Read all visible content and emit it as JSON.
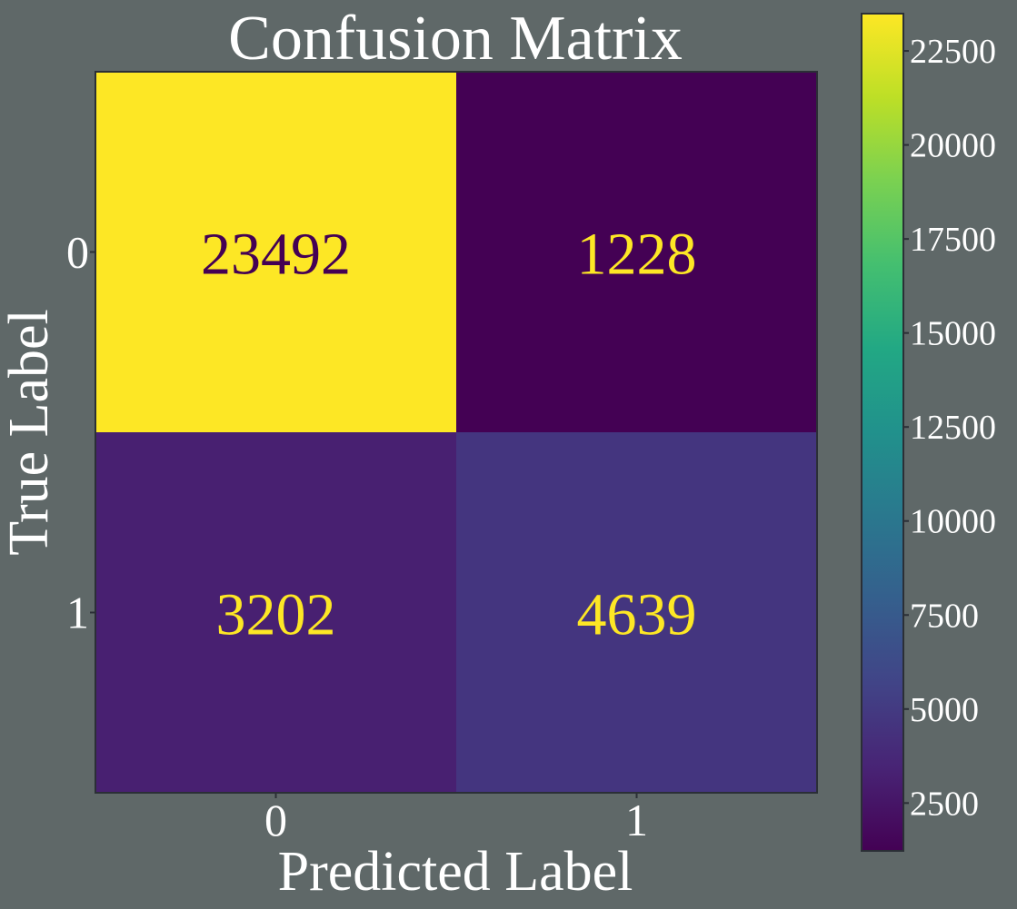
{
  "chart_data": {
    "type": "heatmap",
    "title": "Confusion Matrix",
    "xlabel": "Predicted Label",
    "ylabel": "True Label",
    "x_ticks": [
      "0",
      "1"
    ],
    "y_ticks": [
      "0",
      "1"
    ],
    "matrix": [
      [
        23492,
        1228
      ],
      [
        3202,
        4639
      ]
    ],
    "cell_labels": [
      [
        "23492",
        "1228"
      ],
      [
        "3202",
        "4639"
      ]
    ],
    "colormap": "viridis",
    "colorbar": {
      "range": [
        1228,
        23492
      ],
      "ticks": [
        2500,
        5000,
        7500,
        10000,
        12500,
        15000,
        17500,
        20000,
        22500
      ],
      "tick_labels": [
        "2500",
        "5000",
        "7500",
        "10000",
        "12500",
        "15000",
        "17500",
        "20000",
        "22500"
      ]
    },
    "colors": {
      "background": "#5f6868",
      "text": "#ffffff",
      "frame": "#2b2f36",
      "label_on_dark": "#fde725",
      "label_on_light": "#440154"
    }
  }
}
